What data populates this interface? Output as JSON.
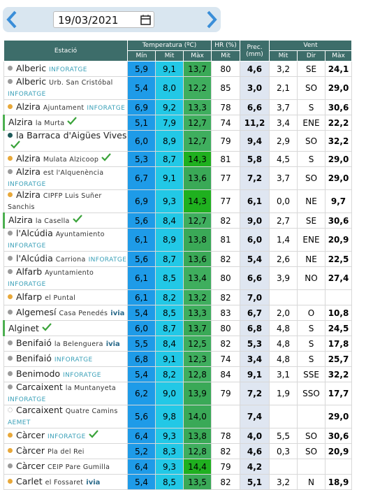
{
  "date": "19/03/2021",
  "header": {
    "station": "Estació",
    "temp": "Temperatura (ºC)",
    "hr": "HR (%)",
    "prec": "Prec. (mm)",
    "wind": "Vent",
    "tmin": "Mín",
    "tmit": "Mit",
    "tmax": "Màx",
    "hrmit": "Mit",
    "wmit": "Mit",
    "wdir": "Dir",
    "wmax": "Màx"
  },
  "rows": [
    {
      "station": "Alberic",
      "detail": null,
      "network": "INFORATGE",
      "check": false,
      "marker": "#9a9a9a",
      "min": "5,9",
      "mit": "9,1",
      "max": "13,7",
      "hr": "80",
      "prec": "4,6",
      "wind": "3,2",
      "dir": "SE",
      "gust": "24,1"
    },
    {
      "station": "Alberic",
      "detail": "Urb. San Cristóbal",
      "network": "INFORATGE",
      "check": false,
      "marker": "#9a9a9a",
      "min": "5,4",
      "mit": "8,0",
      "max": "12,2",
      "hr": "85",
      "prec": "3,0",
      "wind": "2,1",
      "dir": "SO",
      "gust": "29,0"
    },
    {
      "station": "Alzira",
      "detail": "Ajuntament",
      "network": "INFORATGE",
      "check": false,
      "marker": "#e8a83a",
      "min": "6,9",
      "mit": "9,2",
      "max": "13,3",
      "hr": "78",
      "prec": "6,6",
      "wind": "3,7",
      "dir": "S",
      "gust": "30,6"
    },
    {
      "station": "Alzira",
      "detail": "la Murta",
      "network": null,
      "check": true,
      "marker": "bar",
      "min": "5,1",
      "mit": "7,9",
      "max": "12,7",
      "hr": "74",
      "prec": "11,2",
      "wind": "3,4",
      "dir": "ENE",
      "gust": "22,2"
    },
    {
      "station": "la Barraca d'Aigües Vives",
      "detail": null,
      "network": null,
      "check": true,
      "marker": "#1f5a5a",
      "min": "6,0",
      "mit": "8,9",
      "max": "12,7",
      "hr": "79",
      "prec": "9,4",
      "wind": "2,9",
      "dir": "SO",
      "gust": "32,2"
    },
    {
      "station": "Alzira",
      "detail": "Mulata Alzicoop",
      "network": null,
      "check": true,
      "marker": "#e8a83a",
      "min": "5,3",
      "mit": "8,7",
      "max": "14,3",
      "hr": "81",
      "prec": "5,8",
      "wind": "4,5",
      "dir": "S",
      "gust": "29,0"
    },
    {
      "station": "Alzira",
      "detail": "est l'Alquenència",
      "network": "INFORATGE",
      "check": false,
      "marker": "#9a9a9a",
      "min": "6,7",
      "mit": "9,1",
      "max": "13,6",
      "hr": "77",
      "prec": "7,2",
      "wind": "3,7",
      "dir": "SO",
      "gust": "29,0"
    },
    {
      "station": "Alzira",
      "detail": "CIPFP Luis Suñer Sanchis",
      "network": null,
      "check": false,
      "marker": "#e8a83a",
      "min": "6,9",
      "mit": "9,3",
      "max": "14,3",
      "hr": "77",
      "prec": "6,1",
      "wind": "0,0",
      "dir": "NE",
      "gust": "9,7"
    },
    {
      "station": "Alzira",
      "detail": "la Casella",
      "network": null,
      "check": true,
      "marker": "bar",
      "min": "5,6",
      "mit": "8,4",
      "max": "12,7",
      "hr": "82",
      "prec": "9,0",
      "wind": "2,7",
      "dir": "SE",
      "gust": "30,6"
    },
    {
      "station": "l'Alcúdia",
      "detail": "Ayuntamiento",
      "network": "INFORATGE",
      "check": false,
      "marker": "#9a9a9a",
      "min": "6,1",
      "mit": "8,9",
      "max": "13,8",
      "hr": "81",
      "prec": "6,0",
      "wind": "1,4",
      "dir": "ENE",
      "gust": "20,9"
    },
    {
      "station": "l'Alcúdia",
      "detail": "Carriona",
      "network": "INFORATGE",
      "check": false,
      "marker": "#9a9a9a",
      "min": "5,6",
      "mit": "8,7",
      "max": "13,6",
      "hr": "82",
      "prec": "5,4",
      "wind": "2,6",
      "dir": "NE",
      "gust": "22,5"
    },
    {
      "station": "Alfarb",
      "detail": "Ayuntamiento",
      "network": "INFORATGE",
      "check": false,
      "marker": "#9a9a9a",
      "min": "6,1",
      "mit": "8,5",
      "max": "13,4",
      "hr": "80",
      "prec": "6,6",
      "wind": "3,9",
      "dir": "NO",
      "gust": "27,4"
    },
    {
      "station": "Alfarp",
      "detail": "el Puntal",
      "network": null,
      "check": false,
      "marker": "#e8a83a",
      "min": "6,1",
      "mit": "8,2",
      "max": "13,2",
      "hr": "82",
      "prec": "7,0",
      "wind": null,
      "dir": null,
      "gust": null
    },
    {
      "station": "Algemesí",
      "detail": "Casa Penedés",
      "network": "ivia",
      "check": false,
      "marker": "#9a9a9a",
      "min": "5,4",
      "mit": "8,5",
      "max": "13,3",
      "hr": "83",
      "prec": "6,7",
      "wind": "2,0",
      "dir": "O",
      "gust": "10,8"
    },
    {
      "station": "Alginet",
      "detail": null,
      "network": null,
      "check": true,
      "marker": "bar",
      "min": "6,0",
      "mit": "8,7",
      "max": "13,7",
      "hr": "80",
      "prec": "6,8",
      "wind": "4,8",
      "dir": "S",
      "gust": "24,5"
    },
    {
      "station": "Benifaió",
      "detail": "la Belenguera",
      "network": "ivia",
      "check": false,
      "marker": "#9a9a9a",
      "min": "5,5",
      "mit": "8,4",
      "max": "12,5",
      "hr": "82",
      "prec": "5,3",
      "wind": "4,8",
      "dir": "S",
      "gust": "17,8"
    },
    {
      "station": "Benifaió",
      "detail": null,
      "network": "INFORATGE",
      "check": false,
      "marker": "#9a9a9a",
      "min": "6,8",
      "mit": "9,1",
      "max": "12,3",
      "hr": "74",
      "prec": "3,4",
      "wind": "4,8",
      "dir": "S",
      "gust": "25,7"
    },
    {
      "station": "Benimodo",
      "detail": null,
      "network": "INFORATGE",
      "check": false,
      "marker": "#9a9a9a",
      "min": "5,4",
      "mit": "8,2",
      "max": "12,8",
      "hr": "84",
      "prec": "9,1",
      "wind": "3,1",
      "dir": "SSE",
      "gust": "32,2"
    },
    {
      "station": "Carcaixent",
      "detail": "la Muntanyeta",
      "network": "INFORATGE",
      "check": false,
      "marker": "#9a9a9a",
      "min": "6,2",
      "mit": "9,0",
      "max": "13,9",
      "hr": "79",
      "prec": "7,2",
      "wind": "1,9",
      "dir": "SSO",
      "gust": "17,7"
    },
    {
      "station": "Carcaixent",
      "detail": "Quatre Camins",
      "network": "AEMET",
      "check": false,
      "marker": "ring",
      "min": "5,6",
      "mit": "9,8",
      "max": "14,0",
      "hr": null,
      "prec": "7,4",
      "wind": null,
      "dir": null,
      "gust": "29,0"
    },
    {
      "station": "Càrcer",
      "detail": null,
      "network": "INFORATGE",
      "check": true,
      "marker": "#e8a83a",
      "min": "6,4",
      "mit": "9,3",
      "max": "13,8",
      "hr": "78",
      "prec": "4,0",
      "wind": "5,5",
      "dir": "SO",
      "gust": "30,6"
    },
    {
      "station": "Càrcer",
      "detail": "Pla del Rei",
      "network": null,
      "check": false,
      "marker": "#e8a83a",
      "min": "5,2",
      "mit": "8,3",
      "max": "12,8",
      "hr": "82",
      "prec": "4,6",
      "wind": "0,3",
      "dir": "SO",
      "gust": "20,9"
    },
    {
      "station": "Càrcer",
      "detail": "CEIP Pare Gumilla",
      "network": null,
      "check": false,
      "marker": "#9a9a9a",
      "min": "6,4",
      "mit": "9,3",
      "max": "14,4",
      "hr": "79",
      "prec": "4,2",
      "wind": null,
      "dir": null,
      "gust": null
    },
    {
      "station": "Carlet",
      "detail": "el Fossaret",
      "network": "ivia",
      "check": false,
      "marker": "#e8a83a",
      "min": "5,4",
      "mit": "8,5",
      "max": "13,5",
      "hr": "82",
      "prec": "5,1",
      "wind": "3,2",
      "dir": "N",
      "gust": "18,9"
    }
  ]
}
